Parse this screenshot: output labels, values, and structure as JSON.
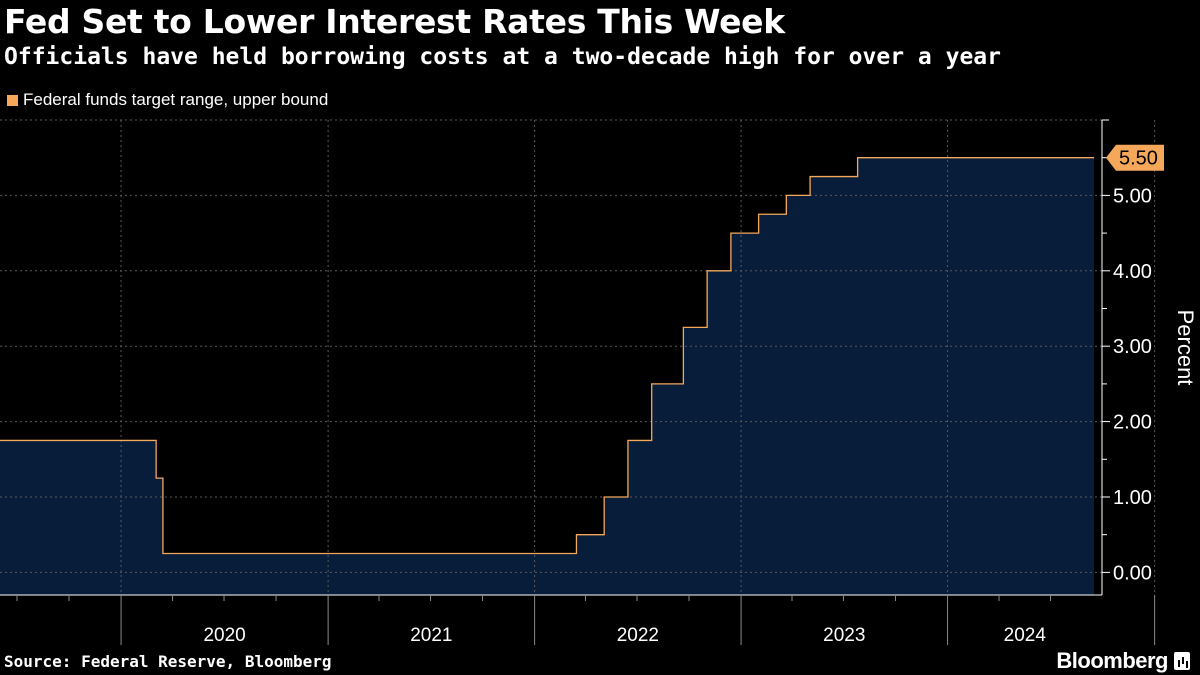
{
  "header": {
    "title": "Fed Set to Lower Interest Rates This Week",
    "subtitle": "Officials have held borrowing costs at a two-decade high for over a year"
  },
  "legend": {
    "label": "Federal funds target range, upper bound",
    "color": "#f5a85a"
  },
  "footer": {
    "source": "Source: Federal Reserve, Bloomberg",
    "brand": "Bloomberg"
  },
  "colors": {
    "background": "#000000",
    "line": "#f5a85a",
    "area": "#071d3a",
    "grid": "#5a5a5a",
    "text": "#ffffff"
  },
  "chart_data": {
    "type": "area",
    "title": "Fed Set to Lower Interest Rates This Week",
    "ylabel": "Percent",
    "ylim": [
      -0.3,
      6
    ],
    "yticks": [
      0,
      1,
      2,
      3,
      4,
      5
    ],
    "ytick_labels": [
      "0.00",
      "1.00",
      "2.00",
      "3.00",
      "4.00",
      "5.00"
    ],
    "xlim": [
      "2019-06-01",
      "2024-09-30"
    ],
    "x_year_labels": [
      "2020",
      "2021",
      "2022",
      "2023",
      "2024"
    ],
    "grid": true,
    "legend_position": "top-left",
    "last_value_label": "5.50",
    "series": [
      {
        "name": "Federal funds target range, upper bound",
        "points": [
          {
            "date": "2019-06-01",
            "value": 1.75
          },
          {
            "date": "2020-03-03",
            "value": 1.25
          },
          {
            "date": "2020-03-15",
            "value": 0.25
          },
          {
            "date": "2022-03-16",
            "value": 0.5
          },
          {
            "date": "2022-05-04",
            "value": 1.0
          },
          {
            "date": "2022-06-15",
            "value": 1.75
          },
          {
            "date": "2022-07-27",
            "value": 2.5
          },
          {
            "date": "2022-09-21",
            "value": 3.25
          },
          {
            "date": "2022-11-02",
            "value": 4.0
          },
          {
            "date": "2022-12-14",
            "value": 4.5
          },
          {
            "date": "2023-02-01",
            "value": 4.75
          },
          {
            "date": "2023-03-22",
            "value": 5.0
          },
          {
            "date": "2023-05-03",
            "value": 5.25
          },
          {
            "date": "2023-07-26",
            "value": 5.5
          },
          {
            "date": "2024-09-16",
            "value": 5.5
          }
        ]
      }
    ]
  }
}
